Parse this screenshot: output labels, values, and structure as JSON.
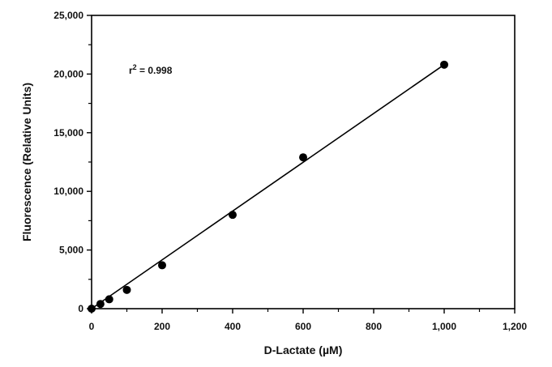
{
  "chart_data": {
    "type": "scatter",
    "xlabel": "D-Lactate (µM)",
    "ylabel": "Fluorescence (Relative Units)",
    "xlim": [
      0,
      1200
    ],
    "ylim": [
      0,
      25000
    ],
    "x_ticks": [
      0,
      200,
      400,
      600,
      800,
      1000,
      1200
    ],
    "x_tick_labels": [
      "0",
      "200",
      "400",
      "600",
      "800",
      "1,000",
      "1,200"
    ],
    "y_ticks": [
      0,
      5000,
      10000,
      15000,
      20000,
      25000
    ],
    "y_tick_labels": [
      "0",
      "5,000",
      "10,000",
      "15,000",
      "20,000",
      "25,000"
    ],
    "grid": false,
    "series": [
      {
        "x": [
          0,
          25,
          50,
          100,
          200,
          400,
          600,
          1000
        ],
        "y": [
          0,
          400,
          800,
          1600,
          3700,
          8000,
          12900,
          20800
        ],
        "marker": "filled-circle",
        "color": "#000000"
      }
    ],
    "fit_line": {
      "x": [
        0,
        1000
      ],
      "y": [
        0,
        20800
      ],
      "color": "#000000"
    },
    "annotation": {
      "base": "r",
      "superscript": "2",
      "rest": " = 0.998"
    }
  }
}
